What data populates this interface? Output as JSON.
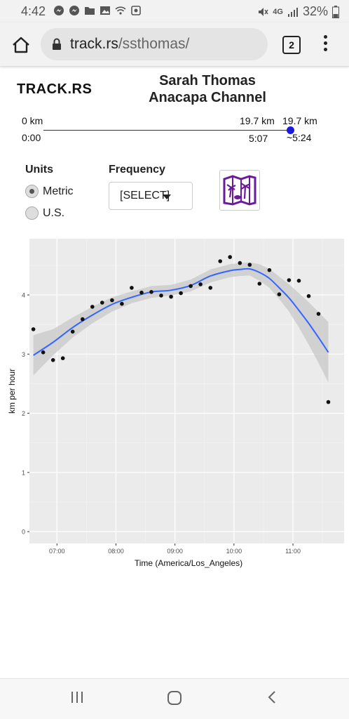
{
  "status_bar": {
    "time": "4:42",
    "network": "4G",
    "battery": "32%"
  },
  "browser": {
    "url_domain": "track.rs",
    "url_path": "/ssthomas/",
    "tab_count": "2"
  },
  "page": {
    "brand": "TRACK.RS",
    "title_line1": "Sarah Thomas",
    "title_line2": "Anacapa Channel"
  },
  "progress": {
    "start_distance": "0 km",
    "start_time": "0:00",
    "current_distance": "19.7 km",
    "current_time": "5:07",
    "total_distance": "19.7 km",
    "total_time": "~5:24",
    "fraction": 1.0
  },
  "controls": {
    "units_label": "Units",
    "metric_label": "Metric",
    "us_label": "U.S.",
    "selected_unit": "Metric",
    "frequency_label": "Frequency",
    "frequency_value": "[SELECT]"
  },
  "colors": {
    "accent": "#1a1adb",
    "trend": "#3366ff",
    "map_icon": "#6a1b9a",
    "panel": "#ebebeb"
  },
  "chart_data": {
    "type": "scatter",
    "xlabel": "Time (America/Los_Angeles)",
    "ylabel": "km per hour",
    "x_ticks": [
      "07:00",
      "08:00",
      "09:00",
      "10:00",
      "11:00"
    ],
    "y_ticks": [
      "0",
      "1",
      "2",
      "3",
      "4"
    ],
    "xlim": [
      "06:32",
      "11:52"
    ],
    "ylim": [
      -0.2,
      4.95
    ],
    "grid": true,
    "points": [
      {
        "x": "06:36",
        "y": 3.42
      },
      {
        "x": "06:46",
        "y": 3.03
      },
      {
        "x": "06:56",
        "y": 2.9
      },
      {
        "x": "07:06",
        "y": 2.93
      },
      {
        "x": "07:16",
        "y": 3.38
      },
      {
        "x": "07:26",
        "y": 3.59
      },
      {
        "x": "07:36",
        "y": 3.8
      },
      {
        "x": "07:46",
        "y": 3.87
      },
      {
        "x": "07:56",
        "y": 3.91
      },
      {
        "x": "08:06",
        "y": 3.85
      },
      {
        "x": "08:16",
        "y": 4.12
      },
      {
        "x": "08:26",
        "y": 4.04
      },
      {
        "x": "08:36",
        "y": 4.05
      },
      {
        "x": "08:46",
        "y": 3.99
      },
      {
        "x": "08:56",
        "y": 3.97
      },
      {
        "x": "09:06",
        "y": 4.03
      },
      {
        "x": "09:16",
        "y": 4.15
      },
      {
        "x": "09:26",
        "y": 4.18
      },
      {
        "x": "09:36",
        "y": 4.12
      },
      {
        "x": "09:46",
        "y": 4.57
      },
      {
        "x": "09:56",
        "y": 4.64
      },
      {
        "x": "10:06",
        "y": 4.54
      },
      {
        "x": "10:16",
        "y": 4.51
      },
      {
        "x": "10:26",
        "y": 4.19
      },
      {
        "x": "10:36",
        "y": 4.42
      },
      {
        "x": "10:46",
        "y": 4.01
      },
      {
        "x": "10:56",
        "y": 4.25
      },
      {
        "x": "11:06",
        "y": 4.24
      },
      {
        "x": "11:16",
        "y": 3.98
      },
      {
        "x": "11:26",
        "y": 3.68
      },
      {
        "x": "11:36",
        "y": 2.19
      }
    ],
    "trend": {
      "x": [
        "06:36",
        "06:56",
        "07:16",
        "07:36",
        "07:56",
        "08:16",
        "08:36",
        "08:56",
        "09:16",
        "09:36",
        "09:56",
        "10:06",
        "10:16",
        "10:26",
        "10:36",
        "10:46",
        "10:56",
        "11:06",
        "11:16",
        "11:26",
        "11:36"
      ],
      "y": [
        2.98,
        3.2,
        3.45,
        3.66,
        3.84,
        3.96,
        4.05,
        4.08,
        4.16,
        4.32,
        4.41,
        4.43,
        4.44,
        4.38,
        4.28,
        4.12,
        3.95,
        3.74,
        3.52,
        3.28,
        3.03
      ],
      "lower": [
        2.64,
        2.98,
        3.28,
        3.52,
        3.72,
        3.86,
        3.95,
        3.99,
        4.06,
        4.21,
        4.3,
        4.32,
        4.33,
        4.24,
        4.12,
        3.93,
        3.72,
        3.45,
        3.16,
        2.85,
        2.52
      ],
      "upper": [
        3.32,
        3.42,
        3.62,
        3.8,
        3.96,
        4.06,
        4.15,
        4.17,
        4.26,
        4.43,
        4.52,
        4.54,
        4.55,
        4.52,
        4.44,
        4.31,
        4.18,
        4.03,
        3.88,
        3.71,
        3.54
      ]
    }
  }
}
